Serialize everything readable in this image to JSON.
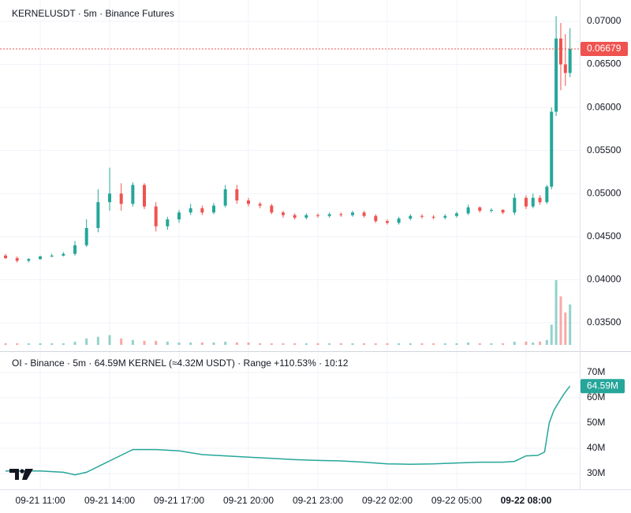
{
  "chart_data": [
    {
      "type": "candlestick",
      "title": "KERNELUSDT · 5m · Binance Futures",
      "x": [
        -1.5,
        -1,
        -0.5,
        0,
        0.5,
        1,
        1.5,
        2,
        2.5,
        3,
        3.5,
        4,
        4.5,
        5,
        5.5,
        6,
        6.5,
        7,
        7.5,
        8,
        8.5,
        9,
        9.5,
        10,
        10.5,
        11,
        11.5,
        12,
        12.5,
        13,
        13.5,
        14,
        14.5,
        15,
        15.5,
        16,
        16.5,
        17,
        17.5,
        18,
        18.5,
        19,
        19.5,
        20,
        20.5,
        21,
        21.3,
        21.6,
        21.9,
        22.1,
        22.3,
        22.5,
        22.7,
        22.9
      ],
      "open": [
        0.0428,
        0.0425,
        0.0422,
        0.0424,
        0.0427,
        0.0428,
        0.043,
        0.044,
        0.046,
        0.049,
        0.05,
        0.0488,
        0.051,
        0.0485,
        0.0462,
        0.047,
        0.0478,
        0.0483,
        0.0478,
        0.0486,
        0.0505,
        0.0492,
        0.0488,
        0.0486,
        0.0478,
        0.0475,
        0.0472,
        0.0475,
        0.0474,
        0.0476,
        0.0475,
        0.0478,
        0.0474,
        0.0468,
        0.0466,
        0.0471,
        0.0474,
        0.0473,
        0.0472,
        0.0474,
        0.0477,
        0.0484,
        0.048,
        0.0481,
        0.0478,
        0.0495,
        0.0485,
        0.0495,
        0.049,
        0.0508,
        0.0595,
        0.068,
        0.065,
        0.064
      ],
      "high": [
        0.043,
        0.0427,
        0.0425,
        0.0428,
        0.043,
        0.0432,
        0.0445,
        0.047,
        0.0505,
        0.053,
        0.0512,
        0.0513,
        0.0512,
        0.049,
        0.0473,
        0.0481,
        0.0488,
        0.0486,
        0.0489,
        0.051,
        0.051,
        0.0495,
        0.049,
        0.0488,
        0.048,
        0.0477,
        0.0477,
        0.0477,
        0.0478,
        0.0478,
        0.048,
        0.048,
        0.0476,
        0.047,
        0.0473,
        0.0476,
        0.0476,
        0.0475,
        0.0476,
        0.0479,
        0.0487,
        0.0485,
        0.0483,
        0.0482,
        0.05,
        0.0498,
        0.05,
        0.0498,
        0.051,
        0.06,
        0.0706,
        0.0698,
        0.0685,
        0.0692
      ],
      "low": [
        0.0424,
        0.042,
        0.042,
        0.0423,
        0.0426,
        0.0427,
        0.0428,
        0.0438,
        0.0455,
        0.048,
        0.048,
        0.0485,
        0.0482,
        0.0456,
        0.0458,
        0.0466,
        0.0475,
        0.0475,
        0.0476,
        0.0484,
        0.0488,
        0.0485,
        0.0483,
        0.0476,
        0.0472,
        0.047,
        0.047,
        0.0472,
        0.0472,
        0.0473,
        0.0473,
        0.0472,
        0.0466,
        0.0464,
        0.0464,
        0.0469,
        0.0471,
        0.047,
        0.047,
        0.0472,
        0.0475,
        0.0478,
        0.0478,
        0.0476,
        0.0475,
        0.0482,
        0.0483,
        0.0487,
        0.0488,
        0.0505,
        0.059,
        0.062,
        0.0625,
        0.0635
      ],
      "close": [
        0.0425,
        0.0422,
        0.0424,
        0.0427,
        0.0428,
        0.043,
        0.044,
        0.046,
        0.049,
        0.05,
        0.0488,
        0.051,
        0.0485,
        0.0462,
        0.047,
        0.0478,
        0.0483,
        0.0478,
        0.0486,
        0.0505,
        0.0492,
        0.0488,
        0.0486,
        0.0478,
        0.0475,
        0.0472,
        0.0475,
        0.0474,
        0.0476,
        0.0475,
        0.0478,
        0.0474,
        0.0468,
        0.0466,
        0.0471,
        0.0474,
        0.0473,
        0.0472,
        0.0474,
        0.0477,
        0.0484,
        0.048,
        0.0481,
        0.0478,
        0.0495,
        0.0485,
        0.0495,
        0.049,
        0.0508,
        0.0595,
        0.068,
        0.065,
        0.064,
        0.06679
      ],
      "volume": [
        2,
        2,
        2,
        2,
        2,
        2,
        4,
        8,
        10,
        12,
        8,
        6,
        5,
        5,
        4,
        3,
        3,
        3,
        3,
        4,
        3,
        3,
        2,
        2,
        2,
        2,
        2,
        2,
        2,
        2,
        2,
        2,
        2,
        2,
        2,
        2,
        2,
        2,
        2,
        2,
        3,
        2,
        2,
        2,
        4,
        4,
        3,
        4,
        6,
        25,
        80,
        60,
        40,
        50
      ],
      "up_color": "#26a69a",
      "down_color": "#ef5350",
      "last_price": 0.06679,
      "xlim": [
        -1.74,
        23.32
      ],
      "ylim": [
        0.0317,
        0.07247
      ],
      "yticks": [
        {
          "value": 0.035,
          "label": "0.03500"
        },
        {
          "value": 0.04,
          "label": "0.04000"
        },
        {
          "value": 0.045,
          "label": "0.04500"
        },
        {
          "value": 0.05,
          "label": "0.05000"
        },
        {
          "value": 0.055,
          "label": "0.05500"
        },
        {
          "value": 0.06,
          "label": "0.06000"
        },
        {
          "value": 0.065,
          "label": "0.06500"
        },
        {
          "value": 0.07,
          "label": "0.07000"
        }
      ],
      "grid": true
    },
    {
      "type": "line",
      "title": "OI - Binance · 5m · 64.59M KERNEL (≈4.32M USDT) · Range +110.53% · 10:12",
      "x": [
        -1.5,
        -1,
        0,
        1,
        1.5,
        2,
        3,
        4,
        5,
        6,
        7,
        8,
        9,
        10,
        11,
        12,
        13,
        14,
        15,
        16,
        17,
        18,
        19,
        20,
        20.5,
        21,
        21.5,
        21.8,
        22,
        22.2,
        22.4,
        22.6,
        22.8,
        22.9
      ],
      "values": [
        31000000,
        31000000,
        31000000,
        30500000,
        29500000,
        30500000,
        35000000,
        39500000,
        39500000,
        39000000,
        37500000,
        37000000,
        36500000,
        36000000,
        35500000,
        35200000,
        35000000,
        34500000,
        33800000,
        33700000,
        33800000,
        34200000,
        34500000,
        34500000,
        34800000,
        37000000,
        37200000,
        38500000,
        50000000,
        55000000,
        58000000,
        61000000,
        63500000,
        64590000
      ],
      "last_value": {
        "value": 64590000,
        "label": "64.59M"
      },
      "color": "#26a69a",
      "xlim": [
        -1.74,
        23.32
      ],
      "ylim": [
        23750000,
        77800000
      ],
      "yticks": [
        {
          "value": 30000000,
          "label": "30M"
        },
        {
          "value": 40000000,
          "label": "40M"
        },
        {
          "value": 50000000,
          "label": "50M"
        },
        {
          "value": 60000000,
          "label": "60M"
        },
        {
          "value": 70000000,
          "label": "70M"
        }
      ],
      "xticks": [
        {
          "value": 0,
          "label": "09-21 11:00"
        },
        {
          "value": 3,
          "label": "09-21 14:00"
        },
        {
          "value": 6,
          "label": "09-21 17:00"
        },
        {
          "value": 9,
          "label": "09-21 20:00"
        },
        {
          "value": 12,
          "label": "09-21 23:00"
        },
        {
          "value": 15,
          "label": "09-22 02:00"
        },
        {
          "value": 18,
          "label": "09-22 05:00"
        },
        {
          "value": 21,
          "label": "09-22 08:00"
        }
      ],
      "grid": true
    }
  ]
}
